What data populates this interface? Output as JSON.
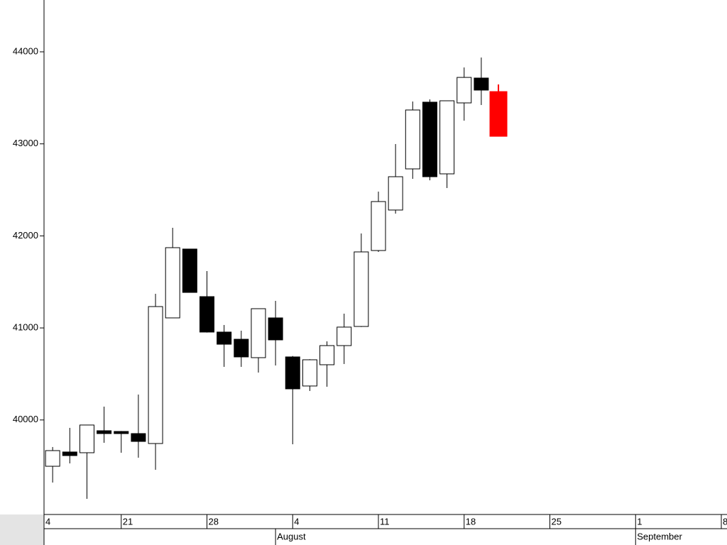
{
  "chart_data": {
    "type": "candlestick",
    "categories": [
      "4",
      null,
      null,
      null,
      null,
      "21",
      null,
      null,
      null,
      null,
      "28",
      null,
      null,
      null,
      null,
      "4",
      null,
      null,
      null,
      null,
      "11",
      null,
      null,
      null,
      null,
      "18",
      null,
      null,
      null,
      null,
      "25",
      null,
      null,
      null,
      null,
      "1",
      null,
      null,
      null,
      null,
      "8"
    ],
    "months": [
      null,
      null,
      null,
      null,
      null,
      null,
      null,
      null,
      null,
      null,
      null,
      null,
      null,
      null,
      "August",
      null,
      null,
      null,
      null,
      null,
      null,
      null,
      null,
      null,
      null,
      null,
      null,
      null,
      null,
      null,
      null,
      null,
      null,
      null,
      null,
      "September",
      null,
      null,
      null,
      null,
      null
    ],
    "open": [
      null,
      39497,
      39652,
      39644,
      39883,
      39875,
      39852,
      39744,
      41109,
      41857,
      41340,
      40955,
      40877,
      40677,
      41109,
      40685,
      40369,
      40600,
      40808,
      41016,
      41841,
      42281,
      42728,
      43453,
      42674,
      43445,
      43715,
      43568,
      null,
      null,
      null,
      null,
      null,
      null,
      null,
      null,
      null,
      null,
      null,
      null,
      null
    ],
    "high": [
      null,
      39706,
      39914,
      39945,
      40145,
      39880,
      40276,
      41371,
      42088,
      41860,
      41618,
      41032,
      40970,
      41209,
      41294,
      40695,
      40660,
      40854,
      41155,
      42026,
      42481,
      42998,
      43460,
      43483,
      43468,
      43830,
      43938,
      43645,
      null,
      null,
      null,
      null,
      null,
      null,
      null,
      null,
      null,
      null,
      null,
      null,
      null
    ],
    "low": [
      null,
      39320,
      39528,
      39143,
      39752,
      39644,
      39590,
      39459,
      41109,
      41386,
      40950,
      40577,
      40577,
      40515,
      40592,
      39736,
      40315,
      40361,
      40608,
      41010,
      41826,
      42242,
      42620,
      42604,
      42520,
      43252,
      43422,
      43082,
      null,
      null,
      null,
      null,
      null,
      null,
      null,
      null,
      null,
      null,
      null,
      null,
      null
    ],
    "close": [
      null,
      39667,
      39613,
      39945,
      39852,
      39852,
      39767,
      41232,
      41872,
      41386,
      40955,
      40823,
      40685,
      41209,
      40870,
      40338,
      40654,
      40808,
      41009,
      41826,
      42373,
      42643,
      43368,
      42643,
      43468,
      43722,
      43584,
      43082,
      null,
      null,
      null,
      null,
      null,
      null,
      null,
      null,
      null,
      null,
      null,
      null,
      null
    ],
    "up_color": "#ffffff",
    "down_color": "#000000",
    "last_color": "#ff0000",
    "ylim": [
      38973,
      44563
    ],
    "yticks": [
      40000,
      41000,
      42000,
      43000,
      44000
    ]
  }
}
